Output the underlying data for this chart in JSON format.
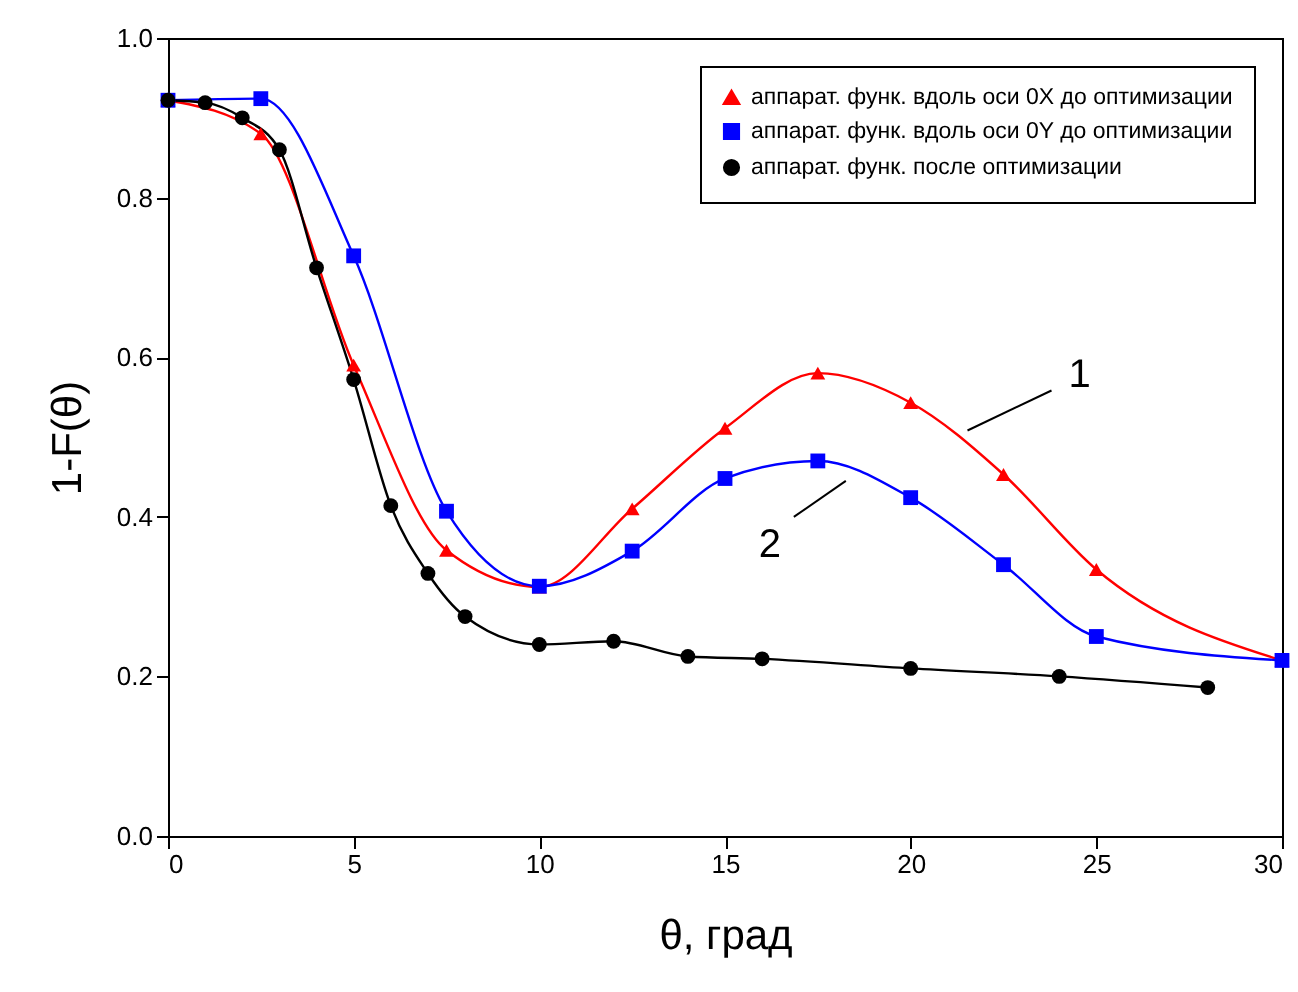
{
  "chart_data": {
    "type": "line",
    "xlabel": "θ, град",
    "ylabel": "1-F(θ)",
    "xlim": [
      0,
      30
    ],
    "xticks": [
      0,
      5,
      10,
      15,
      20,
      25,
      30
    ],
    "ylim": [
      0,
      1
    ],
    "yticks": [
      {
        "value": 0,
        "label": "0.0"
      },
      {
        "value": 0.2,
        "label": "0.2"
      },
      {
        "value": 0.4,
        "label": "0.4"
      },
      {
        "value": 0.6,
        "label": "0.6"
      },
      {
        "value": 0.8,
        "label": "0.8"
      },
      {
        "value": 1,
        "label": "1.0"
      }
    ],
    "grid": false,
    "legend": "top right",
    "series": [
      {
        "name": "аппарат. функ. вдоль оси 0X до оптимизации",
        "color": "#ff0000",
        "marker": "triangle",
        "x": [
          0,
          2.5,
          5,
          7.5,
          10,
          12.5,
          15,
          17.5,
          20,
          22.5,
          25,
          30
        ],
        "values": [
          0.922,
          0.88,
          0.59,
          0.358,
          0.312,
          0.41,
          0.511,
          0.58,
          0.543,
          0.453,
          0.334,
          0.22
        ]
      },
      {
        "name": "аппарат. функ. вдоль оси 0Y до оптимизации",
        "color": "#0000ff",
        "marker": "square",
        "x": [
          0,
          2.5,
          5,
          7.5,
          10,
          12.5,
          15,
          17.5,
          20,
          22.5,
          25,
          30
        ],
        "values": [
          0.922,
          0.924,
          0.727,
          0.407,
          0.313,
          0.357,
          0.448,
          0.47,
          0.424,
          0.34,
          0.25,
          0.22
        ]
      },
      {
        "name": "аппарат. функ. после оптимизации",
        "color": "#000000",
        "marker": "circle",
        "x": [
          0,
          1,
          2,
          3,
          4,
          5,
          6,
          7,
          8,
          10,
          12,
          14,
          16,
          20,
          24,
          28
        ],
        "values": [
          0.922,
          0.919,
          0.9,
          0.86,
          0.712,
          0.572,
          0.414,
          0.329,
          0.275,
          0.24,
          0.244,
          0.225,
          0.222,
          0.21,
          0.2,
          0.186
        ]
      }
    ],
    "annotations": [
      {
        "text": "1",
        "x": 22.5,
        "y": 0.453
      },
      {
        "text": "2",
        "x": 17.5,
        "y": 0.47
      }
    ]
  }
}
